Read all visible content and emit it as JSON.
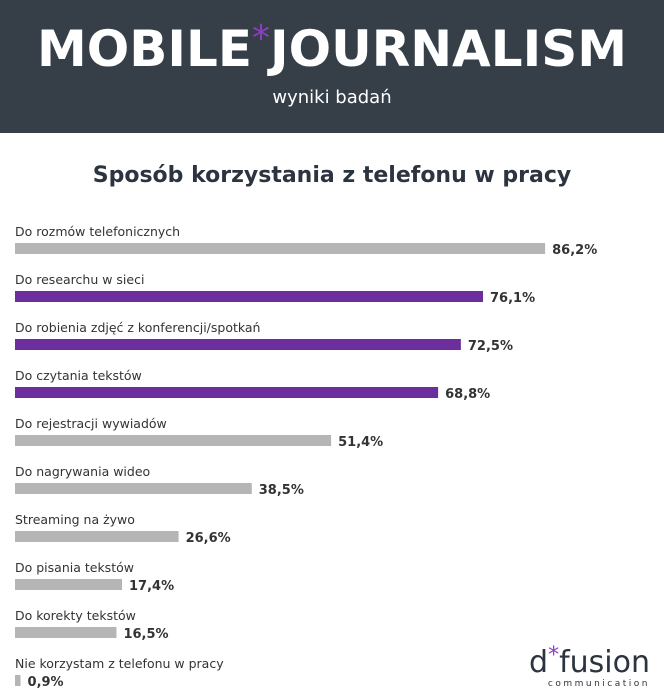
{
  "header": {
    "title_parts": [
      "MOBILE",
      "*",
      "JOURNALISM"
    ],
    "subtitle": "wyniki badań"
  },
  "chart_data": {
    "type": "hbar",
    "title": "Sposób korzystania z telefonu w pracy",
    "categories": [
      "Do rozmów telefonicznych",
      "Do researchu w sieci",
      "Do robienia zdjęć z konferencji/spotkań",
      "Do czytania tekstów",
      "Do rejestracji wywiadów",
      "Do nagrywania wideo",
      "Streaming na żywo",
      "Do pisania tekstów",
      "Do korekty tekstów",
      "Nie korzystam z telefonu w pracy"
    ],
    "values": [
      86.2,
      76.1,
      72.5,
      68.8,
      51.4,
      38.5,
      26.6,
      17.4,
      16.5,
      0.9
    ],
    "value_labels": [
      "86,2%",
      "76,1%",
      "72,5%",
      "68,8%",
      "51,4%",
      "38,5%",
      "26,6%",
      "17,4%",
      "16,5%",
      "0,9%"
    ],
    "colors": [
      "#b5b5b5",
      "#6b2e9a",
      "#6b2e9a",
      "#6b2e9a",
      "#b5b5b5",
      "#b5b5b5",
      "#b5b5b5",
      "#b5b5b5",
      "#b5b5b5",
      "#b5b5b5"
    ]
  },
  "logo": {
    "parts": [
      "d",
      "*",
      "fusion"
    ],
    "tagline": "communication"
  }
}
